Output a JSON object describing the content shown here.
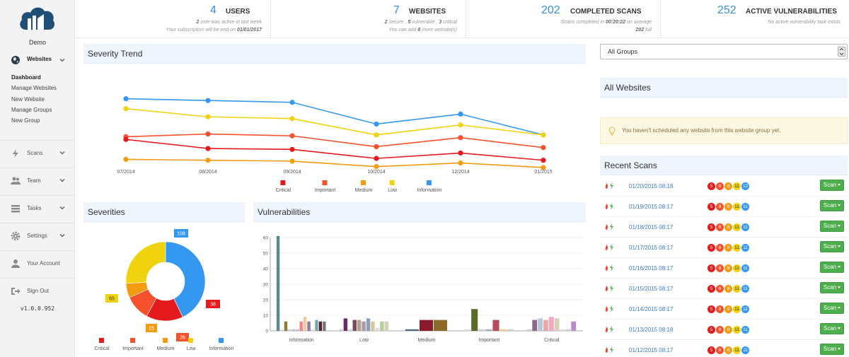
{
  "brand": "Demo",
  "version": "v1.0.0.952",
  "nav": {
    "websites": "Websites",
    "submenu": [
      "Dashboard",
      "Manage Websites",
      "New Website",
      "Manage Groups",
      "New Group"
    ],
    "items": [
      {
        "label": "Scans",
        "icon": "bolt-icon",
        "chevron": true
      },
      {
        "label": "Team",
        "icon": "users-icon",
        "chevron": true
      },
      {
        "label": "Tasks",
        "icon": "tasks-icon",
        "chevron": true
      },
      {
        "label": "Settings",
        "icon": "gear-icon",
        "chevron": true
      },
      {
        "label": "Your Account",
        "icon": "user-icon",
        "chevron": false
      },
      {
        "label": "Sign Out",
        "icon": "sign-out-icon",
        "chevron": false
      }
    ]
  },
  "stats": {
    "users": {
      "num": "4",
      "label": "USERS",
      "sub1_pre": "2",
      "sub1_post": " user was active in last week",
      "sub2_pre": "Your subscription will be end on ",
      "sub2_date": "01/01/2017"
    },
    "websites": {
      "num": "7",
      "label": "WEBSITES",
      "sub1_a": "2",
      "sub1_a_t": " secure , ",
      "sub1_b": "5",
      "sub1_b_t": " vulnerable , ",
      "sub1_c": "3",
      "sub1_c_t": " critical",
      "sub2_pre": "You can add ",
      "sub2_num": "8",
      "sub2_post": " more website(s)"
    },
    "scans": {
      "num": "202",
      "label": "COMPLETED SCANS",
      "sub1_pre": "Scans completed in ",
      "sub1_time": "00:20:22",
      "sub1_post": " on average",
      "sub2_num": "202",
      "sub2_post": " full"
    },
    "vulns": {
      "num": "252",
      "label": "ACTIVE VULNERABILITIES",
      "sub1": "No active vulnerability task exists"
    }
  },
  "panels": {
    "trend": "Severity Trend",
    "severities": "Severities",
    "vulnerabilities": "Vulnerabilities",
    "all_websites": "All Websites",
    "recent_scans": "Recent Scans"
  },
  "group_select": {
    "value": "All Groups"
  },
  "alert": "You haven't scheduled any website from this website group yet.",
  "colors": {
    "critical": "#e41a1c",
    "important": "#f4512c",
    "medium": "#f39c12",
    "low": "#f1d20f",
    "information": "#3498f0",
    "accent": "#3a8fd9",
    "green": "#4cae4c"
  },
  "chart_data": [
    {
      "type": "line",
      "title": "Severity Trend",
      "categories": [
        "07/2014",
        "08/2014",
        "09/2014",
        "10/2014",
        "12/2014",
        "01/2015"
      ],
      "series": [
        {
          "name": "Information",
          "values": [
            62,
            60,
            58,
            34,
            45,
            22
          ]
        },
        {
          "name": "Low",
          "values": [
            51,
            42,
            40,
            22,
            33,
            22
          ]
        },
        {
          "name": "Important",
          "values": [
            20,
            23,
            21,
            9,
            19,
            8
          ]
        },
        {
          "name": "Critical",
          "values": [
            17,
            7,
            6,
            -4,
            2,
            -6
          ]
        },
        {
          "name": "Medium",
          "values": [
            -5,
            -6,
            -7,
            -13,
            -9,
            -14
          ]
        }
      ],
      "legend": [
        "Critical",
        "Important",
        "Medium",
        "Low",
        "Information"
      ]
    },
    {
      "type": "pie",
      "title": "Severities",
      "slices": [
        {
          "name": "Information",
          "value": 108
        },
        {
          "name": "Critical",
          "value": 38
        },
        {
          "name": "Important",
          "value": 26
        },
        {
          "name": "Medium",
          "value": 15
        },
        {
          "name": "Low",
          "value": 65
        }
      ],
      "legend": [
        "Critical",
        "Important",
        "Medium",
        "Low",
        "Information"
      ]
    },
    {
      "type": "bar",
      "title": "Vulnerabilities",
      "categories": [
        "Information",
        "Low",
        "Medium",
        "Important",
        "Critical"
      ],
      "ylim": [
        0,
        60
      ],
      "yticks": [
        0,
        10,
        20,
        30,
        40,
        50,
        60
      ],
      "groups": [
        [
          61,
          1,
          6,
          1,
          1,
          1,
          6,
          9,
          6,
          1,
          7,
          6,
          6
        ],
        [
          1,
          8,
          1,
          7,
          7,
          6,
          8,
          6,
          2,
          6,
          6
        ],
        [
          1,
          7,
          7
        ],
        [
          1,
          14,
          1,
          1,
          7,
          1,
          1
        ],
        [
          1,
          7,
          8,
          7,
          9,
          8,
          1,
          1,
          6
        ]
      ],
      "group_colors": [
        [
          "#5b8a8a",
          "#dddddd",
          "#8b7a3a",
          "#cccccc",
          "#bbbbbb",
          "#c9b5c5",
          "#e88",
          "#f4c7a0",
          "#8a7aa8",
          "#ddd",
          "#7aa",
          "#552233",
          "#777"
        ],
        [
          "#ccc",
          "#6a2a6a",
          "#ccc",
          "#7a4a5a",
          "#b8a090",
          "#a9a",
          "#8aa0b8",
          "#d4c8a0",
          "#ddd",
          "#b8d0a0",
          "#d8d0b8"
        ],
        [
          "#4a6a7a",
          "#8b1a2a",
          "#8b6a2a"
        ],
        [
          "#ddd",
          "#5a6a2a",
          "#ccc",
          "#aaa",
          "#b84a5a",
          "#f4c790",
          "#ccc"
        ],
        [
          "#ccc",
          "#8a6a8a",
          "#b8c8d8",
          "#e8a8a8",
          "#f4a8c0",
          "#d8d0b8",
          "#ddd",
          "#ccc",
          "#b88ac8"
        ]
      ]
    }
  ],
  "recent_scans": [
    {
      "date": "01/20/2015 08:18",
      "badges": [
        "5",
        "8",
        "8",
        "11",
        "12"
      ]
    },
    {
      "date": "01/19/2015 08:17",
      "badges": [
        "5",
        "8",
        "8",
        "11",
        "11"
      ]
    },
    {
      "date": "01/18/2015 08:17",
      "badges": [
        "5",
        "8",
        "8",
        "11",
        "11"
      ]
    },
    {
      "date": "01/17/2015 08:17",
      "badges": [
        "5",
        "8",
        "8",
        "11",
        "11"
      ]
    },
    {
      "date": "01/16/2015 08:17",
      "badges": [
        "5",
        "8",
        "8",
        "11",
        "11"
      ]
    },
    {
      "date": "01/15/2015 08:17",
      "badges": [
        "5",
        "8",
        "8",
        "11",
        "11"
      ]
    },
    {
      "date": "01/14/2015 08:17",
      "badges": [
        "5",
        "8",
        "8",
        "11",
        "11"
      ]
    },
    {
      "date": "01/13/2015 08:18",
      "badges": [
        "5",
        "8",
        "8",
        "11",
        "11"
      ]
    },
    {
      "date": "01/12/2015 08:17",
      "badges": [
        "5",
        "8",
        "8",
        "11",
        "11"
      ]
    }
  ],
  "scan_button": "Scan"
}
